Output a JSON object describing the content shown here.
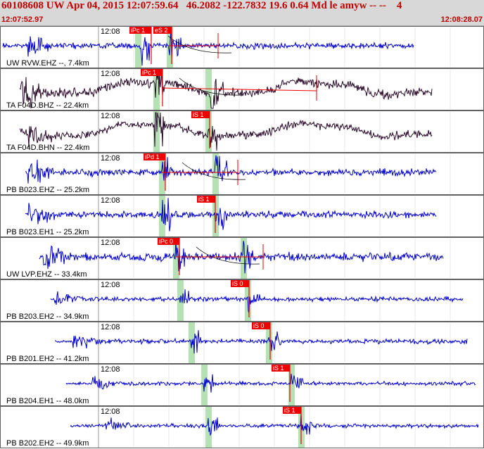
{
  "header": {
    "title": "60108608 UW Apr 04, 2015 12:07:59.64   46.2082 -122.7832 19.6 0.64 Md le amyw -- --    4",
    "start_time": "12:07:52.97",
    "end_time": "12:08:28.07"
  },
  "colors": {
    "trace_blue": "#0000cc",
    "trace_dark": "#2a0a2a",
    "pick_red": "#ee0000",
    "green_band": "#a8dca8",
    "grid": "#d0d0d0"
  },
  "minute_label": "12:08",
  "channels": [
    {
      "label": "UW RVW.EHZ --, 7.4km",
      "color": "blue",
      "picks": [
        {
          "text": "iPc 1"
        },
        {
          "text": "eS 2"
        }
      ]
    },
    {
      "label": "TA F04D.BHZ -- 22.4km",
      "color": "dark",
      "picks": [
        {
          "text": "iPc 1"
        }
      ]
    },
    {
      "label": "TA F04D.BHN -- 22.4km",
      "color": "dark",
      "picks": [
        {
          "text": "iS 1"
        }
      ]
    },
    {
      "label": "PB B023.EHZ -- 25.2km",
      "color": "blue",
      "picks": [
        {
          "text": "iPd 1"
        }
      ]
    },
    {
      "label": "PB B023.EH1 -- 25.2km",
      "color": "blue",
      "picks": [
        {
          "text": "iS 1"
        }
      ]
    },
    {
      "label": "UW LVP.EHZ -- 33.4km",
      "color": "blue",
      "picks": [
        {
          "text": "iPc 0"
        }
      ]
    },
    {
      "label": "PB B203.EH2 -- 34.9km",
      "color": "blue",
      "picks": [
        {
          "text": "iS 0"
        }
      ]
    },
    {
      "label": "PB B201.EH2 -- 41.2km",
      "color": "blue",
      "picks": [
        {
          "text": "iS 0"
        }
      ]
    },
    {
      "label": "PB B204.EH1 -- 48.0km",
      "color": "blue",
      "picks": [
        {
          "text": "iS 1"
        }
      ]
    },
    {
      "label": "PB B202.EH2 -- 49.9km",
      "color": "blue",
      "picks": [
        {
          "text": "iS 1"
        }
      ]
    }
  ]
}
